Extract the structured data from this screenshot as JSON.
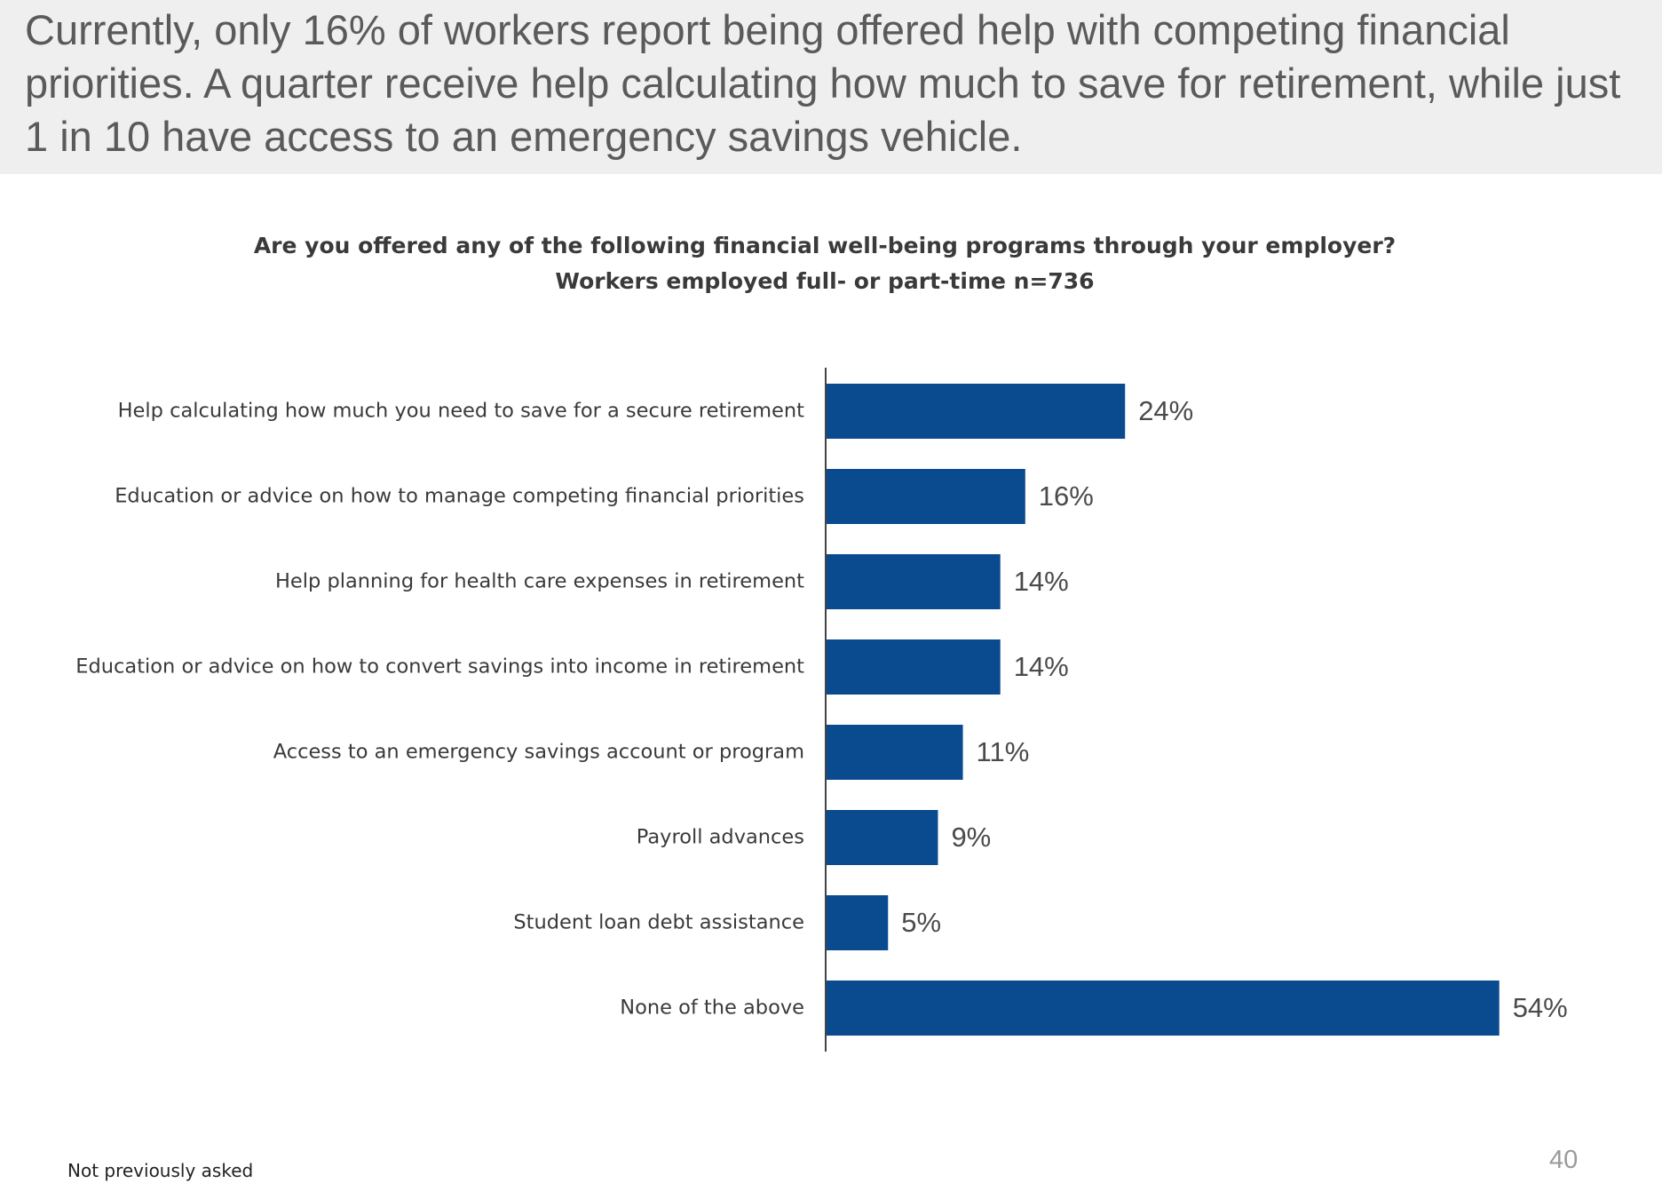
{
  "slide": {
    "headline": "Currently, only 16% of workers report being offered help with competing financial priorities. A quarter receive help calculating how much to save for retirement, while just 1 in 10 have access to an emergency savings vehicle.",
    "footnote": "Not previously asked",
    "page_number": "40"
  },
  "chart_data": {
    "type": "bar",
    "orientation": "horizontal",
    "title": "Are you offered any of the following financial well-being programs through your employer?",
    "subtitle": "Workers employed full- or part-time n=736",
    "categories": [
      "Help calculating how much you need to save for a secure retirement",
      "Education or advice on how to manage competing financial priorities",
      "Help planning for health care expenses in retirement",
      "Education or advice on how to convert savings into income in retirement",
      "Access to an emergency savings account or program",
      "Payroll advances",
      "Student loan debt assistance",
      "None of the above"
    ],
    "values": [
      24,
      16,
      14,
      14,
      11,
      9,
      5,
      54
    ],
    "data_labels": [
      "24%",
      "16%",
      "14%",
      "14%",
      "11%",
      "9%",
      "5%",
      "54%"
    ],
    "unit": "%",
    "xlim": [
      0,
      54
    ],
    "grid": false,
    "legend": "none",
    "bar_color": "#0a4a8e"
  }
}
